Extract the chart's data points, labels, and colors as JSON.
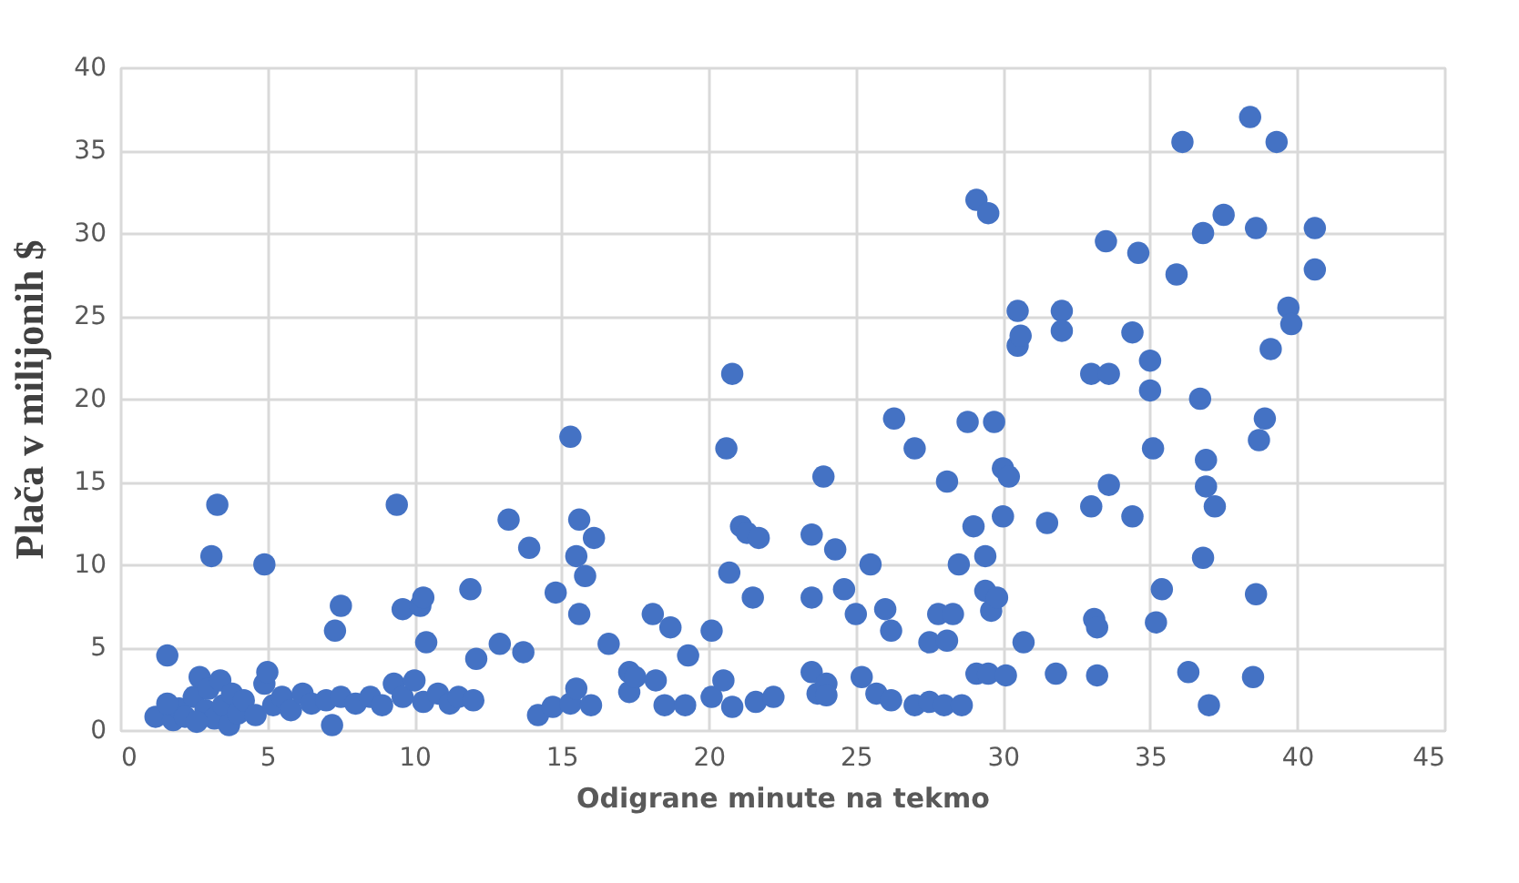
{
  "chart_data": {
    "type": "scatter",
    "xlabel": "Odigrane minute na tekmo",
    "ylabel": "Plača v milijonih $",
    "x": [
      1.2,
      1.8,
      2,
      2.2,
      2.5,
      2.7,
      2.9,
      3,
      3.2,
      3.4,
      3.5,
      3.7,
      3.8,
      4,
      4.2,
      4.6,
      4.9,
      5,
      5.2,
      5.5,
      5.8,
      6.2,
      6.5,
      7,
      7.2,
      7.5,
      8,
      8.5,
      8.9,
      9.3,
      9.6,
      10,
      10.3,
      10.8,
      11.2,
      11.5,
      12,
      1.6,
      2.6,
      1.6,
      3.3,
      3.1,
      4.9,
      7.3,
      7.5,
      9.4,
      9.6,
      10.2,
      10.3,
      10.4,
      11.9,
      12.1,
      12.9,
      13.2,
      13.7,
      13.9,
      14.8,
      15.3,
      15.5,
      15.6,
      15.8,
      15.6,
      16.1,
      16.6,
      17.3,
      18.1,
      18.7,
      19.3,
      20.1,
      20.6,
      20.8,
      20.7,
      21.1,
      21.3,
      21.5,
      21.7,
      23.5,
      23.5,
      23.9,
      24.3,
      24.6,
      25,
      25.5,
      26,
      26.3,
      26.2,
      27,
      27.5,
      27.8,
      28.1,
      28.3,
      28.1,
      28.5,
      28.8,
      29.4,
      29.7,
      29.6,
      29.1,
      29.5,
      29,
      29.4,
      29.8,
      30,
      30.2,
      30,
      30.5,
      30.5,
      30.6,
      30.7,
      31.5,
      32,
      32,
      33,
      33,
      33.1,
      33.2,
      33.5,
      33.6,
      33.6,
      34.4,
      34.6,
      34.4,
      35,
      35,
      35.1,
      35.2,
      35.4,
      36.1,
      35.9,
      36.8,
      36.7,
      36.9,
      36.9,
      37.2,
      37.5,
      36.8,
      38.6,
      38.4,
      39.3,
      38.7,
      38.9,
      39.1,
      39.7,
      39.8,
      40.6,
      40.6,
      38.6,
      36.3,
      37,
      38.5,
      14.2,
      14.7,
      15.3,
      15.5,
      16,
      17.3,
      17.5,
      18.2,
      18.5,
      19.2,
      20.1,
      20.5,
      20.8,
      21.6,
      22.2,
      23.5,
      23.7,
      24,
      24,
      25.2,
      25.7,
      26.2,
      27,
      27.5,
      28,
      28.6,
      29.1,
      29.5,
      30.1,
      31.8,
      33.2
    ],
    "series": [
      {
        "color": "#4472c4",
        "values": [
          0.8,
          0.6,
          1.3,
          0.8,
          2,
          3.2,
          1.2,
          2.5,
          0.7,
          3,
          1.5,
          0.3,
          2.2,
          1,
          1.8,
          0.9,
          2.8,
          3.5,
          1.5,
          2,
          1.2,
          2.2,
          1.6,
          1.8,
          0.3,
          2,
          1.6,
          2,
          1.5,
          2.8,
          2,
          3,
          1.7,
          2.2,
          1.6,
          2,
          1.8,
          1.6,
          0.5,
          4.5,
          13.6,
          10.5,
          10,
          6,
          7.5,
          13.6,
          7.3,
          7.5,
          8,
          5.3,
          8.5,
          4.3,
          5.2,
          12.7,
          4.7,
          11,
          8.3,
          17.7,
          10.5,
          12.7,
          9.3,
          7,
          11.6,
          5.2,
          3.5,
          7,
          6.2,
          4.5,
          6,
          17,
          21.5,
          9.5,
          12.3,
          11.9,
          8,
          11.6,
          11.8,
          8,
          15.3,
          10.9,
          8.5,
          7,
          10,
          7.3,
          18.8,
          6,
          17,
          5.3,
          7,
          15,
          7,
          5.4,
          10,
          18.6,
          8.4,
          18.6,
          7.2,
          32,
          31.2,
          12.3,
          10.5,
          8,
          15.8,
          15.3,
          12.9,
          25.3,
          23.2,
          23.8,
          5.3,
          12.5,
          25.3,
          24.1,
          21.5,
          13.5,
          6.7,
          6.2,
          29.5,
          21.5,
          14.8,
          24,
          28.8,
          12.9,
          22.3,
          20.5,
          17,
          6.5,
          8.5,
          35.5,
          27.5,
          30,
          20,
          16.3,
          14.7,
          13.5,
          31.1,
          10.4,
          30.3,
          37,
          35.5,
          17.5,
          18.8,
          23,
          25.5,
          24.5,
          30.3,
          27.8,
          8.2,
          3.5,
          1.5,
          3.2,
          0.9,
          1.4,
          1.6,
          2.5,
          1.5,
          2.3,
          3.2,
          3,
          1.5,
          1.5,
          2,
          3,
          1.4,
          1.7,
          2,
          3.5,
          2.2,
          2.8,
          2.1,
          3.2,
          2.2,
          1.8,
          1.5,
          1.7,
          1.5,
          1.5,
          3.4,
          3.4,
          3.3,
          3.4,
          3.3
        ]
      }
    ],
    "xlim": [
      0,
      45
    ],
    "xticks": [
      0,
      5,
      10,
      15,
      20,
      25,
      30,
      35,
      40,
      45
    ],
    "ylim": [
      0,
      40
    ],
    "yticks": [
      0,
      5,
      10,
      15,
      20,
      25,
      30,
      35,
      40
    ],
    "grid": true,
    "marker": "circle"
  }
}
